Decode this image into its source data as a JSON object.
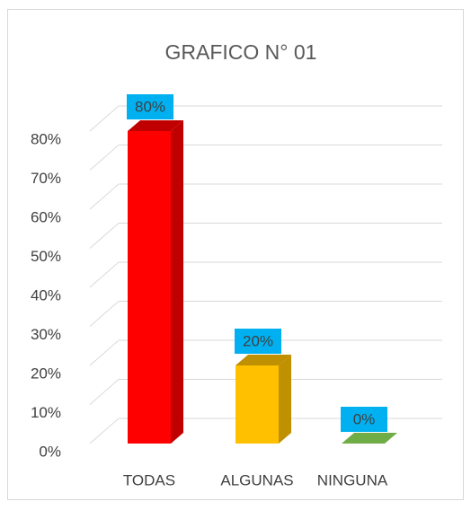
{
  "chart_data": {
    "type": "bar",
    "title": "GRAFICO N° 01",
    "categories": [
      "TODAS",
      "ALGUNAS",
      "NINGUNA"
    ],
    "values": [
      80,
      20,
      0
    ],
    "value_labels": [
      "80%",
      "20%",
      "0%"
    ],
    "colors": [
      "#ff0000",
      "#ffc000",
      "#70ad47"
    ],
    "side_colors": [
      "#c00000",
      "#bf9000",
      "#548235"
    ],
    "label_box_color": "#00b0f0",
    "ylim": [
      0,
      80
    ],
    "yticks": [
      {
        "value": 0,
        "label": "0%"
      },
      {
        "value": 10,
        "label": "10%"
      },
      {
        "value": 20,
        "label": "20%"
      },
      {
        "value": 30,
        "label": "30%"
      },
      {
        "value": 40,
        "label": "40%"
      },
      {
        "value": 50,
        "label": "50%"
      },
      {
        "value": 60,
        "label": "60%"
      },
      {
        "value": 70,
        "label": "70%"
      },
      {
        "value": 80,
        "label": "80%"
      }
    ],
    "grid": true
  }
}
